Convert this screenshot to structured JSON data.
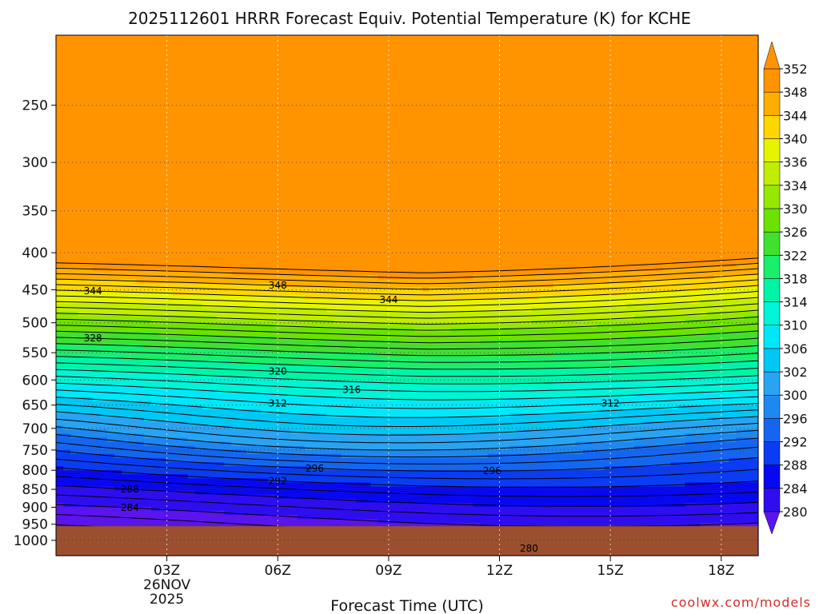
{
  "chart_data": {
    "type": "contour",
    "title": "2025112601 HRRR Forecast Equiv. Potential Temperature (K) for KCHE",
    "xlabel": "Forecast Time (UTC)",
    "credit": "coolwx.com/models",
    "x_ticks": [
      {
        "x": 3,
        "label": "03Z",
        "sub1": "26NOV",
        "sub2": "2025"
      },
      {
        "x": 6,
        "label": "06Z"
      },
      {
        "x": 9,
        "label": "09Z"
      },
      {
        "x": 12,
        "label": "12Z"
      },
      {
        "x": 15,
        "label": "15Z"
      },
      {
        "x": 18,
        "label": "18Z"
      }
    ],
    "xlim": [
      0,
      19
    ],
    "y_ticks": [
      250,
      300,
      350,
      400,
      450,
      500,
      550,
      600,
      650,
      700,
      750,
      800,
      850,
      900,
      950,
      1000
    ],
    "ylim": [
      1050,
      200
    ],
    "y_scale": "log",
    "ground_pressure": 956,
    "colorbar": {
      "levels": [
        280,
        284,
        288,
        292,
        296,
        300,
        302,
        306,
        310,
        314,
        318,
        322,
        326,
        330,
        334,
        336,
        340,
        344,
        348,
        352
      ],
      "colors": [
        "#5a14ee",
        "#2e0ef0",
        "#0808f0",
        "#0a3cf4",
        "#1466f0",
        "#1e88f0",
        "#28a4f2",
        "#00c8f4",
        "#00e8f8",
        "#00f4d6",
        "#00f4a8",
        "#1aee6a",
        "#40e030",
        "#6ce200",
        "#96e800",
        "#c0ee00",
        "#e6f400",
        "#ffd600",
        "#ffae00",
        "#ff9400"
      ],
      "extend": "both"
    },
    "contour_labels": [
      {
        "x": 2.0,
        "p": 288,
        "text": "288"
      },
      {
        "x": 2.0,
        "p": 284,
        "text": "284"
      },
      {
        "x": 6.0,
        "p": 292,
        "text": "292"
      },
      {
        "x": 7.0,
        "p": 296,
        "text": "296"
      },
      {
        "x": 11.8,
        "p": 296,
        "text": "296"
      },
      {
        "x": 12.8,
        "p": 280,
        "text": "280"
      },
      {
        "x": 6.0,
        "p": 312,
        "text": "312"
      },
      {
        "x": 6.0,
        "p": 320,
        "text": "320"
      },
      {
        "x": 8.0,
        "p": 316,
        "text": "316"
      },
      {
        "x": 15.0,
        "p": 312,
        "text": "312"
      },
      {
        "x": 1.0,
        "p": 328,
        "text": "328"
      },
      {
        "x": 1.0,
        "p": 344,
        "text": "344"
      },
      {
        "x": 6.0,
        "p": 348,
        "text": "348"
      },
      {
        "x": 9.0,
        "p": 344,
        "text": "344"
      }
    ]
  }
}
